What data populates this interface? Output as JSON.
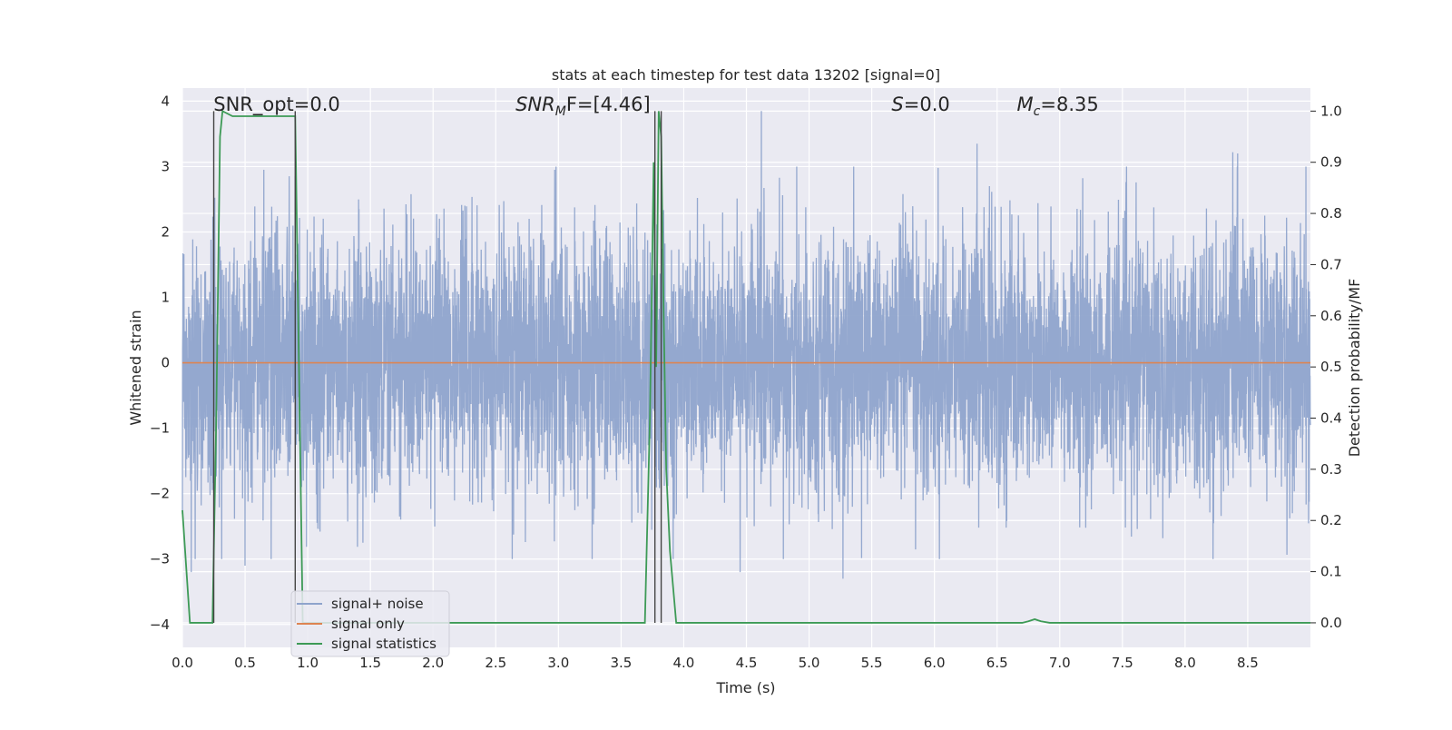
{
  "chart_data": {
    "type": "line",
    "title": "stats at each timestep for test data 13202 [signal=0]",
    "xlabel": "Time (s)",
    "ylabel": "Whitened strain",
    "y2label": "Detection probability/MF",
    "xlim": [
      0.0,
      9.0
    ],
    "ylim": [
      -4.35,
      4.2
    ],
    "y2lim": [
      -0.048,
      1.045
    ],
    "grid": true,
    "legend_position": "lower-left",
    "x_ticks": [
      "0.0",
      "0.5",
      "1.0",
      "1.5",
      "2.0",
      "2.5",
      "3.0",
      "3.5",
      "4.0",
      "4.5",
      "5.0",
      "5.5",
      "6.0",
      "6.5",
      "7.0",
      "7.5",
      "8.0",
      "8.5"
    ],
    "y_ticks": [
      "−4",
      "−3",
      "−2",
      "−1",
      "0",
      "1",
      "2",
      "3",
      "4"
    ],
    "y2_ticks": [
      "0.0",
      "0.1",
      "0.2",
      "0.3",
      "0.4",
      "0.5",
      "0.6",
      "0.7",
      "0.8",
      "0.9",
      "1.0"
    ],
    "annotations": [
      {
        "text": "SNR_opt=0.0",
        "x": 0.19,
        "y": 3.95
      },
      {
        "text": "SNR",
        "sub": "M",
        "tail": "F=[4.46]",
        "x": 2.6,
        "y": 3.95,
        "italic": true
      },
      {
        "text": "S",
        "tail": "=0.0",
        "x": 5.6,
        "y": 3.95,
        "italic": true
      },
      {
        "text": "M",
        "sub": "c",
        "tail": "=8.35",
        "x": 6.6,
        "y": 3.95,
        "italic": true
      }
    ],
    "vertical_lines": [
      0.25,
      0.9,
      3.77,
      3.82
    ],
    "series": [
      {
        "name": "signal+ noise",
        "color": "#8fa4cc",
        "axis": "left",
        "description": "whitened strain noise, approximately gaussian with peaks near ±3.8",
        "peaks": [
          {
            "x": 4.62,
            "y": 3.85
          },
          {
            "x": 6.34,
            "y": 3.35
          },
          {
            "x": 8.42,
            "y": 3.2
          },
          {
            "x": 8.38,
            "y": 3.22
          },
          {
            "x": 0.9,
            "y": 2.85
          },
          {
            "x": 0.65,
            "y": 2.95
          },
          {
            "x": 2.97,
            "y": 2.95
          },
          {
            "x": 5.27,
            "y": -3.3
          },
          {
            "x": 4.45,
            "y": -3.2
          },
          {
            "x": 0.07,
            "y": -3.2
          },
          {
            "x": 6.04,
            "y": -3.0
          },
          {
            "x": 0.5,
            "y": -3.1
          }
        ]
      },
      {
        "name": "signal only",
        "color": "#dd8452",
        "axis": "left",
        "x": [
          0.0,
          9.0
        ],
        "y": [
          0.0,
          0.0
        ]
      },
      {
        "name": "signal statistics",
        "color": "#3d9a56",
        "axis": "right",
        "x": [
          0.0,
          0.06,
          0.1,
          0.24,
          0.27,
          0.3,
          0.32,
          0.4,
          0.5,
          0.6,
          0.7,
          0.8,
          0.87,
          0.9,
          0.93,
          0.96,
          1.0,
          2.0,
          3.0,
          3.69,
          3.73,
          3.76,
          3.78,
          3.8,
          3.82,
          3.84,
          3.86,
          3.89,
          3.94,
          4.0,
          5.0,
          6.0,
          6.7,
          6.75,
          6.8,
          6.85,
          6.92,
          7.0,
          8.0,
          9.0
        ],
        "y": [
          0.22,
          0.0,
          0.0,
          0.0,
          0.4,
          0.95,
          1.0,
          0.99,
          0.99,
          0.99,
          0.99,
          0.99,
          0.99,
          0.99,
          0.5,
          0.0,
          0.0,
          0.0,
          0.0,
          0.0,
          0.4,
          0.9,
          0.5,
          1.0,
          0.95,
          0.6,
          0.3,
          0.14,
          0.0,
          0.0,
          0.0,
          0.0,
          0.0,
          0.003,
          0.007,
          0.003,
          0.0,
          0.0,
          0.0,
          0.0
        ]
      }
    ]
  }
}
